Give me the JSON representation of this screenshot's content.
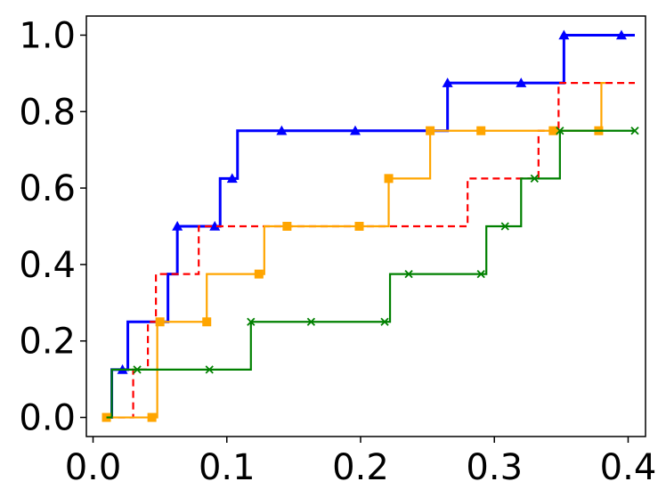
{
  "chart_data": {
    "type": "line",
    "title": "",
    "xlabel": "",
    "ylabel": "",
    "xlim": [
      -0.005,
      0.413
    ],
    "ylim": [
      -0.05,
      1.05
    ],
    "x_ticks": [
      0.0,
      0.1,
      0.2,
      0.3,
      0.4
    ],
    "y_ticks": [
      0.0,
      0.2,
      0.4,
      0.6,
      0.8,
      1.0
    ],
    "x_tick_labels": [
      "0.0",
      "0.1",
      "0.2",
      "0.3",
      "0.4"
    ],
    "y_tick_labels": [
      "0.0",
      "0.2",
      "0.4",
      "0.6",
      "0.8",
      "1.0"
    ],
    "grid": false,
    "step": "post",
    "series": [
      {
        "color": "#0000ff",
        "line_style": "solid",
        "marker": "triangle",
        "x": [
          0.01,
          0.014,
          0.022,
          0.026,
          0.052,
          0.056,
          0.063,
          0.067,
          0.091,
          0.095,
          0.104,
          0.108,
          0.141,
          0.196,
          0.248,
          0.262,
          0.265,
          0.32,
          0.352,
          0.395,
          0.405
        ],
        "y": [
          0.0,
          0.125,
          0.125,
          0.25,
          0.25,
          0.375,
          0.5,
          0.5,
          0.5,
          0.625,
          0.625,
          0.75,
          0.75,
          0.75,
          0.75,
          0.75,
          0.875,
          0.875,
          1.0,
          1.0,
          1.0
        ],
        "markers_x": [
          0.022,
          0.063,
          0.091,
          0.104,
          0.141,
          0.196,
          0.265,
          0.32,
          0.352,
          0.395
        ],
        "markers_y": [
          0.125,
          0.5,
          0.5,
          0.625,
          0.75,
          0.75,
          0.875,
          0.875,
          1.0,
          1.0
        ]
      },
      {
        "color": "#ff0000",
        "line_style": "dashed",
        "marker": "none",
        "x": [
          0.01,
          0.026,
          0.03,
          0.037,
          0.041,
          0.047,
          0.051,
          0.075,
          0.079,
          0.139,
          0.143,
          0.276,
          0.28,
          0.329,
          0.333,
          0.344,
          0.348,
          0.405
        ],
        "y": [
          0.0,
          0.0,
          0.125,
          0.125,
          0.25,
          0.375,
          0.375,
          0.375,
          0.5,
          0.5,
          0.5,
          0.5,
          0.625,
          0.625,
          0.75,
          0.75,
          0.875,
          0.875
        ]
      },
      {
        "color": "#ffa500",
        "line_style": "solid",
        "marker": "square",
        "x": [
          0.01,
          0.044,
          0.048,
          0.05,
          0.081,
          0.085,
          0.089,
          0.124,
          0.128,
          0.131,
          0.145,
          0.199,
          0.217,
          0.221,
          0.248,
          0.252,
          0.29,
          0.344,
          0.378,
          0.38,
          0.383
        ],
        "y": [
          0.0,
          0.0,
          0.25,
          0.25,
          0.25,
          0.375,
          0.375,
          0.375,
          0.5,
          0.5,
          0.5,
          0.5,
          0.5,
          0.625,
          0.625,
          0.75,
          0.75,
          0.75,
          0.75,
          0.875,
          0.875
        ],
        "markers_x": [
          0.01,
          0.044,
          0.05,
          0.085,
          0.124,
          0.145,
          0.199,
          0.221,
          0.252,
          0.29,
          0.344,
          0.378
        ],
        "markers_y": [
          0.0,
          0.0,
          0.25,
          0.25,
          0.375,
          0.5,
          0.5,
          0.625,
          0.75,
          0.75,
          0.75,
          0.75
        ]
      },
      {
        "color": "#008000",
        "line_style": "solid",
        "marker": "x",
        "x": [
          0.01,
          0.014,
          0.114,
          0.118,
          0.163,
          0.218,
          0.222,
          0.236,
          0.29,
          0.294,
          0.308,
          0.316,
          0.32,
          0.33,
          0.345,
          0.349,
          0.405
        ],
        "y": [
          0.0,
          0.125,
          0.125,
          0.25,
          0.25,
          0.25,
          0.375,
          0.375,
          0.375,
          0.5,
          0.5,
          0.5,
          0.625,
          0.625,
          0.625,
          0.75,
          0.75
        ],
        "markers_x": [
          0.033,
          0.087,
          0.118,
          0.163,
          0.218,
          0.236,
          0.29,
          0.308,
          0.33,
          0.349,
          0.405
        ],
        "markers_y": [
          0.125,
          0.125,
          0.25,
          0.25,
          0.25,
          0.375,
          0.375,
          0.5,
          0.625,
          0.75,
          0.75
        ]
      }
    ]
  }
}
